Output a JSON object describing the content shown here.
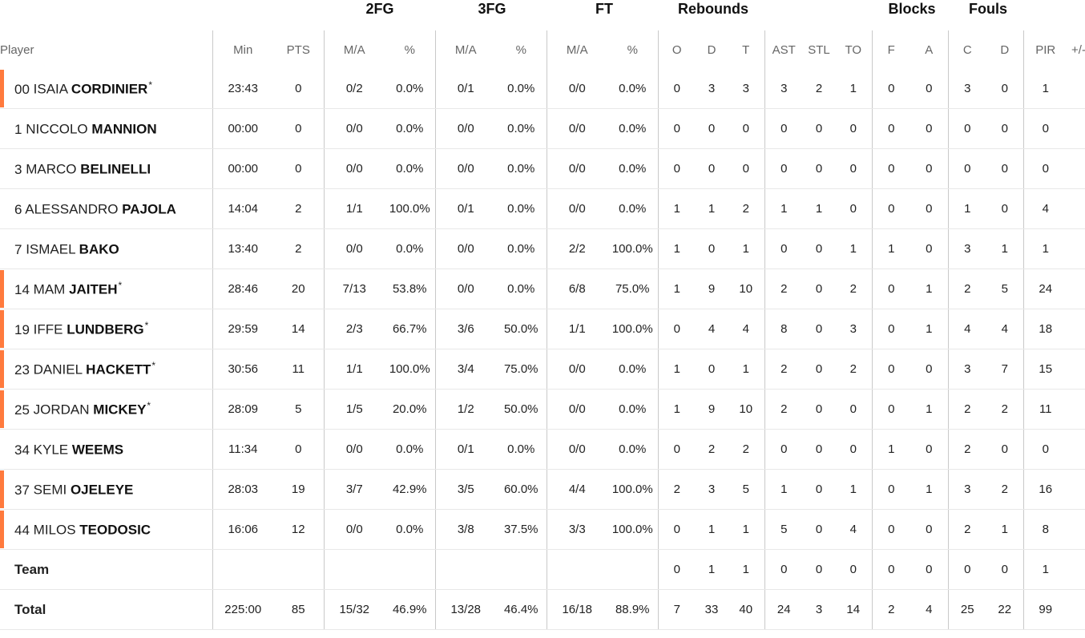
{
  "groups": {
    "fg2": "2FG",
    "fg3": "3FG",
    "ft": "FT",
    "rebounds": "Rebounds",
    "blocks": "Blocks",
    "fouls": "Fouls"
  },
  "columns": {
    "player": "Player",
    "min": "Min",
    "pts": "PTS",
    "fg2_ma": "M/A",
    "fg2_pct": "%",
    "fg3_ma": "M/A",
    "fg3_pct": "%",
    "ft_ma": "M/A",
    "ft_pct": "%",
    "reb_o": "O",
    "reb_d": "D",
    "reb_t": "T",
    "ast": "AST",
    "stl": "STL",
    "to": "TO",
    "blk_f": "F",
    "blk_a": "A",
    "foul_c": "C",
    "foul_d": "D",
    "pir": "PIR",
    "pm": "+/-"
  },
  "rows": [
    {
      "num": "00",
      "first": "ISAIA",
      "last": "CORDINIER",
      "star": "*",
      "min": "23:43",
      "pts": "0",
      "fg2_ma": "0/2",
      "fg2_pct": "0.0%",
      "fg3_ma": "0/1",
      "fg3_pct": "0.0%",
      "ft_ma": "0/0",
      "ft_pct": "0.0%",
      "reb_o": "0",
      "reb_d": "3",
      "reb_t": "3",
      "ast": "3",
      "stl": "2",
      "to": "1",
      "blk_f": "0",
      "blk_a": "0",
      "foul_c": "3",
      "foul_d": "0",
      "pir": "1"
    },
    {
      "num": "1",
      "first": "NICCOLO",
      "last": "MANNION",
      "star": "",
      "min": "00:00",
      "pts": "0",
      "fg2_ma": "0/0",
      "fg2_pct": "0.0%",
      "fg3_ma": "0/0",
      "fg3_pct": "0.0%",
      "ft_ma": "0/0",
      "ft_pct": "0.0%",
      "reb_o": "0",
      "reb_d": "0",
      "reb_t": "0",
      "ast": "0",
      "stl": "0",
      "to": "0",
      "blk_f": "0",
      "blk_a": "0",
      "foul_c": "0",
      "foul_d": "0",
      "pir": "0"
    },
    {
      "num": "3",
      "first": "MARCO",
      "last": "BELINELLI",
      "star": "",
      "min": "00:00",
      "pts": "0",
      "fg2_ma": "0/0",
      "fg2_pct": "0.0%",
      "fg3_ma": "0/0",
      "fg3_pct": "0.0%",
      "ft_ma": "0/0",
      "ft_pct": "0.0%",
      "reb_o": "0",
      "reb_d": "0",
      "reb_t": "0",
      "ast": "0",
      "stl": "0",
      "to": "0",
      "blk_f": "0",
      "blk_a": "0",
      "foul_c": "0",
      "foul_d": "0",
      "pir": "0"
    },
    {
      "num": "6",
      "first": "ALESSANDRO",
      "last": "PAJOLA",
      "star": "",
      "min": "14:04",
      "pts": "2",
      "fg2_ma": "1/1",
      "fg2_pct": "100.0%",
      "fg3_ma": "0/1",
      "fg3_pct": "0.0%",
      "ft_ma": "0/0",
      "ft_pct": "0.0%",
      "reb_o": "1",
      "reb_d": "1",
      "reb_t": "2",
      "ast": "1",
      "stl": "1",
      "to": "0",
      "blk_f": "0",
      "blk_a": "0",
      "foul_c": "1",
      "foul_d": "0",
      "pir": "4"
    },
    {
      "num": "7",
      "first": "ISMAEL",
      "last": "BAKO",
      "star": "",
      "min": "13:40",
      "pts": "2",
      "fg2_ma": "0/0",
      "fg2_pct": "0.0%",
      "fg3_ma": "0/0",
      "fg3_pct": "0.0%",
      "ft_ma": "2/2",
      "ft_pct": "100.0%",
      "reb_o": "1",
      "reb_d": "0",
      "reb_t": "1",
      "ast": "0",
      "stl": "0",
      "to": "1",
      "blk_f": "1",
      "blk_a": "0",
      "foul_c": "3",
      "foul_d": "1",
      "pir": "1"
    },
    {
      "num": "14",
      "first": "MAM",
      "last": "JAITEH",
      "star": "*",
      "min": "28:46",
      "pts": "20",
      "fg2_ma": "7/13",
      "fg2_pct": "53.8%",
      "fg3_ma": "0/0",
      "fg3_pct": "0.0%",
      "ft_ma": "6/8",
      "ft_pct": "75.0%",
      "reb_o": "1",
      "reb_d": "9",
      "reb_t": "10",
      "ast": "2",
      "stl": "0",
      "to": "2",
      "blk_f": "0",
      "blk_a": "1",
      "foul_c": "2",
      "foul_d": "5",
      "pir": "24"
    },
    {
      "num": "19",
      "first": "IFFE",
      "last": "LUNDBERG",
      "star": "*",
      "min": "29:59",
      "pts": "14",
      "fg2_ma": "2/3",
      "fg2_pct": "66.7%",
      "fg3_ma": "3/6",
      "fg3_pct": "50.0%",
      "ft_ma": "1/1",
      "ft_pct": "100.0%",
      "reb_o": "0",
      "reb_d": "4",
      "reb_t": "4",
      "ast": "8",
      "stl": "0",
      "to": "3",
      "blk_f": "0",
      "blk_a": "1",
      "foul_c": "4",
      "foul_d": "4",
      "pir": "18"
    },
    {
      "num": "23",
      "first": "DANIEL",
      "last": "HACKETT",
      "star": "*",
      "min": "30:56",
      "pts": "11",
      "fg2_ma": "1/1",
      "fg2_pct": "100.0%",
      "fg3_ma": "3/4",
      "fg3_pct": "75.0%",
      "ft_ma": "0/0",
      "ft_pct": "0.0%",
      "reb_o": "1",
      "reb_d": "0",
      "reb_t": "1",
      "ast": "2",
      "stl": "0",
      "to": "2",
      "blk_f": "0",
      "blk_a": "0",
      "foul_c": "3",
      "foul_d": "7",
      "pir": "15"
    },
    {
      "num": "25",
      "first": "JORDAN",
      "last": "MICKEY",
      "star": "*",
      "min": "28:09",
      "pts": "5",
      "fg2_ma": "1/5",
      "fg2_pct": "20.0%",
      "fg3_ma": "1/2",
      "fg3_pct": "50.0%",
      "ft_ma": "0/0",
      "ft_pct": "0.0%",
      "reb_o": "1",
      "reb_d": "9",
      "reb_t": "10",
      "ast": "2",
      "stl": "0",
      "to": "0",
      "blk_f": "0",
      "blk_a": "1",
      "foul_c": "2",
      "foul_d": "2",
      "pir": "11"
    },
    {
      "num": "34",
      "first": "KYLE",
      "last": "WEEMS",
      "star": "",
      "min": "11:34",
      "pts": "0",
      "fg2_ma": "0/0",
      "fg2_pct": "0.0%",
      "fg3_ma": "0/1",
      "fg3_pct": "0.0%",
      "ft_ma": "0/0",
      "ft_pct": "0.0%",
      "reb_o": "0",
      "reb_d": "2",
      "reb_t": "2",
      "ast": "0",
      "stl": "0",
      "to": "0",
      "blk_f": "1",
      "blk_a": "0",
      "foul_c": "2",
      "foul_d": "0",
      "pir": "0"
    },
    {
      "num": "37",
      "first": "SEMI",
      "last": "OJELEYE",
      "star": "",
      "min": "28:03",
      "pts": "19",
      "fg2_ma": "3/7",
      "fg2_pct": "42.9%",
      "fg3_ma": "3/5",
      "fg3_pct": "60.0%",
      "ft_ma": "4/4",
      "ft_pct": "100.0%",
      "reb_o": "2",
      "reb_d": "3",
      "reb_t": "5",
      "ast": "1",
      "stl": "0",
      "to": "1",
      "blk_f": "0",
      "blk_a": "1",
      "foul_c": "3",
      "foul_d": "2",
      "pir": "16"
    },
    {
      "num": "44",
      "first": "MILOS",
      "last": "TEODOSIC",
      "star": "",
      "min": "16:06",
      "pts": "12",
      "fg2_ma": "0/0",
      "fg2_pct": "0.0%",
      "fg3_ma": "3/8",
      "fg3_pct": "37.5%",
      "ft_ma": "3/3",
      "ft_pct": "100.0%",
      "reb_o": "0",
      "reb_d": "1",
      "reb_t": "1",
      "ast": "5",
      "stl": "0",
      "to": "4",
      "blk_f": "0",
      "blk_a": "0",
      "foul_c": "2",
      "foul_d": "1",
      "pir": "8"
    }
  ],
  "team": {
    "label": "Team",
    "min": "",
    "pts": "",
    "fg2_ma": "",
    "fg2_pct": "",
    "fg3_ma": "",
    "fg3_pct": "",
    "ft_ma": "",
    "ft_pct": "",
    "reb_o": "0",
    "reb_d": "1",
    "reb_t": "1",
    "ast": "0",
    "stl": "0",
    "to": "0",
    "blk_f": "0",
    "blk_a": "0",
    "foul_c": "0",
    "foul_d": "0",
    "pir": "1"
  },
  "total": {
    "label": "Total",
    "min": "225:00",
    "pts": "85",
    "fg2_ma": "15/32",
    "fg2_pct": "46.9%",
    "fg3_ma": "13/28",
    "fg3_pct": "46.4%",
    "ft_ma": "16/18",
    "ft_pct": "88.9%",
    "reb_o": "7",
    "reb_d": "33",
    "reb_t": "40",
    "ast": "24",
    "stl": "3",
    "to": "14",
    "blk_f": "2",
    "blk_a": "4",
    "foul_c": "25",
    "foul_d": "22",
    "pir": "99"
  },
  "starter_color": "#ff7a3d"
}
